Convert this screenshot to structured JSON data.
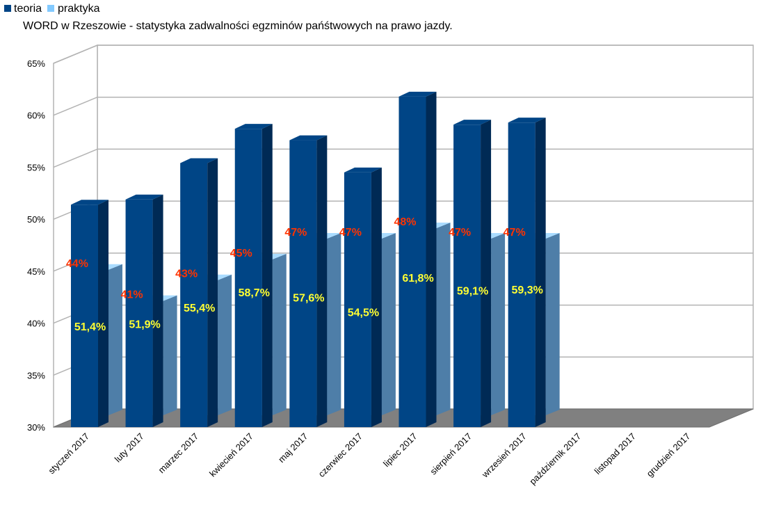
{
  "chart_data": {
    "type": "bar",
    "title": "WORD w Rzeszowie - statystyka zadwalności egzminów pańśtwowych na prawo jazdy.",
    "categories": [
      "styczeń 2017",
      "luty 2017",
      "marzec 2017",
      "kwiecień 2017",
      "maj 2017",
      "czerwiec 2017",
      "lipiec 2017",
      "sierpień 2017",
      "wrzesień 2017",
      "październik 2017",
      "listopad 2017",
      "grudzień 2017"
    ],
    "series": [
      {
        "name": "teoria",
        "color": "#004586",
        "values": [
          51.4,
          51.9,
          55.4,
          58.7,
          57.6,
          54.5,
          61.8,
          59.1,
          59.3,
          null,
          null,
          null
        ],
        "labels": [
          "51,4%",
          "51,9%",
          "55,4%",
          "58,7%",
          "57,6%",
          "54,5%",
          "61,8%",
          "59,1%",
          "59,3%",
          "",
          "",
          ""
        ]
      },
      {
        "name": "praktyka",
        "color": "#83caff",
        "values": [
          44,
          41,
          43,
          45,
          47,
          47,
          48,
          47,
          47,
          null,
          null,
          null
        ],
        "labels": [
          "44%",
          "41%",
          "43%",
          "45%",
          "47%",
          "47%",
          "48%",
          "47%",
          "47%",
          "",
          "",
          ""
        ]
      }
    ],
    "yticks": [
      "30%",
      "35%",
      "40%",
      "45%",
      "50%",
      "55%",
      "60%",
      "65%"
    ],
    "ylim": [
      30,
      65
    ],
    "grid": true,
    "legend": "top-left"
  }
}
